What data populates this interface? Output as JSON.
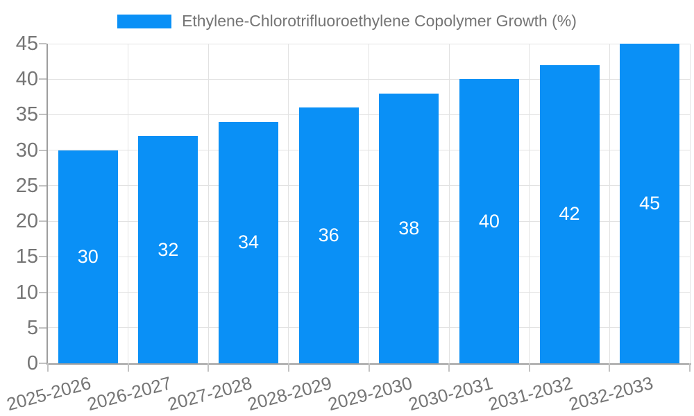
{
  "legend": {
    "position": "top",
    "label": "Ethylene-Chlorotrifluoroethylene Copolymer Growth (%)"
  },
  "colors": {
    "bar": "#0a90f6",
    "bar_value_text": "#ffffff",
    "grid": "#e2e2e2",
    "axis": "#9e9e9e",
    "tick_mark": "#c2c2c2",
    "tick_text": "#757575",
    "background": "#ffffff"
  },
  "chart_data": {
    "type": "bar",
    "title": "Ethylene-Chlorotrifluoroethylene Copolymer Growth (%)",
    "categories": [
      "2025-2026",
      "2026-2027",
      "2027-2028",
      "2028-2029",
      "2029-2030",
      "2030-2031",
      "2031-2032",
      "2032-2033"
    ],
    "values": [
      30,
      32,
      34,
      36,
      38,
      40,
      42,
      45
    ],
    "bar_value_labels": [
      "30",
      "32",
      "34",
      "36",
      "38",
      "40",
      "42",
      "45"
    ],
    "xlabel": "",
    "ylabel": "",
    "ylim": [
      0,
      45
    ],
    "yticks": [
      0,
      5,
      10,
      15,
      20,
      25,
      30,
      35,
      40,
      45
    ],
    "grid": true,
    "legend_position": "top",
    "x_label_rotation_deg": -15,
    "value_label_position": "center-of-bar"
  }
}
